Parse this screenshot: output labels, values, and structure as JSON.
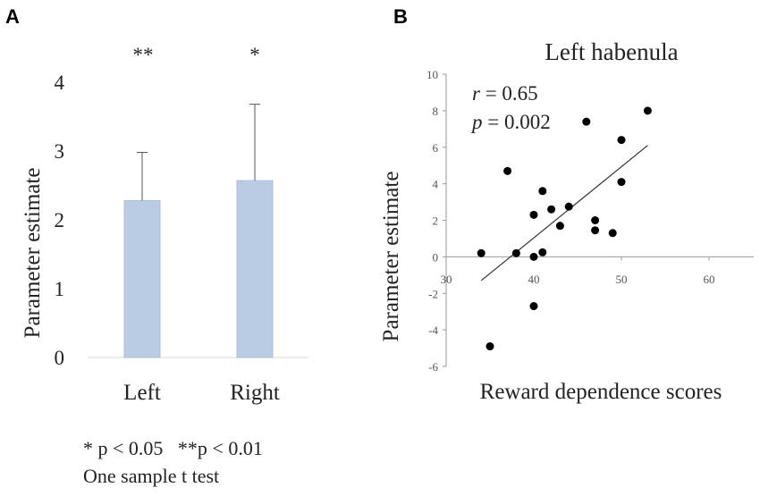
{
  "panel_a": {
    "label": "A",
    "sig_marks": [
      "**",
      "*"
    ],
    "footnote_line1": "* p < 0.05   **p < 0.01",
    "footnote_line2": "One sample t test"
  },
  "panel_b": {
    "label": "B",
    "stats_r_symbol": "r",
    "stats_r_value": " = 0.65",
    "stats_p_symbol": "p",
    "stats_p_value": " = 0.002"
  },
  "colors": {
    "bar_fill": "#b9cce4",
    "bar_stroke": "#a9bfdc",
    "axis": "#999999",
    "gridline": "#d9d9d9",
    "point": "#000000"
  },
  "chart_data": [
    {
      "type": "bar",
      "title": "",
      "categories": [
        "Left",
        "Right"
      ],
      "values": [
        2.28,
        2.57
      ],
      "error_upper": [
        2.98,
        3.68
      ],
      "xlabel": "",
      "ylabel": "Parameter estimate",
      "ylim": [
        0,
        4
      ],
      "yticks": [
        0,
        1,
        2,
        3,
        4
      ],
      "grid": false
    },
    {
      "type": "scatter",
      "title": "Left habenula",
      "xlabel": "Reward dependence scores",
      "ylabel": "Parameter estimate",
      "xlim": [
        30,
        65
      ],
      "ylim": [
        -6,
        10
      ],
      "xticks": [
        30,
        40,
        50,
        60
      ],
      "yticks": [
        -6,
        -4,
        -2,
        0,
        2,
        4,
        6,
        8,
        10
      ],
      "x": [
        34,
        35,
        37,
        38,
        40,
        40,
        40,
        41,
        41,
        42,
        43,
        44,
        46,
        47,
        47,
        49,
        50,
        50,
        53
      ],
      "y": [
        0.2,
        -4.9,
        4.7,
        0.2,
        0.0,
        -2.7,
        2.3,
        3.6,
        0.25,
        2.6,
        1.7,
        2.75,
        7.4,
        2.0,
        1.45,
        1.3,
        6.4,
        4.1,
        8.0
      ],
      "trendline": {
        "x": [
          34,
          53
        ],
        "y": [
          -1.3,
          6.1
        ]
      },
      "stats": {
        "r": 0.65,
        "p": 0.002
      }
    }
  ]
}
